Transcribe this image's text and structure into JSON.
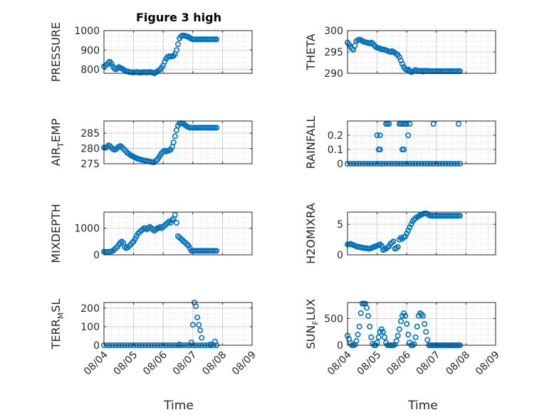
{
  "figure_title": "Figure 3 high",
  "x_axis_label": "Time",
  "marker_color": "#0072BD",
  "chart_data": [
    {
      "type": "scatter",
      "ylabel": "PRESSURE",
      "ylim": [
        780,
        1000
      ],
      "yticks": [
        "800",
        "900",
        "1000"
      ],
      "xticks": [
        "08/04",
        "08/05",
        "08/06",
        "08/07",
        "08/08",
        "08/09"
      ],
      "xlim": [
        0,
        5
      ],
      "show_xticklabels": false,
      "x": [
        0,
        0.05,
        0.1,
        0.15,
        0.2,
        0.25,
        0.3,
        0.35,
        0.4,
        0.45,
        0.5,
        0.55,
        0.6,
        0.65,
        0.7,
        0.75,
        0.8,
        0.85,
        0.9,
        0.95,
        1.0,
        1.05,
        1.1,
        1.15,
        1.2,
        1.25,
        1.3,
        1.35,
        1.4,
        1.45,
        1.5,
        1.55,
        1.6,
        1.65,
        1.7,
        1.75,
        1.8,
        1.85,
        1.9,
        1.95,
        2.0,
        2.05,
        2.1,
        2.15,
        2.2,
        2.25,
        2.3,
        2.35,
        2.4,
        2.45,
        2.5,
        2.55,
        2.6,
        2.65,
        2.7,
        2.75,
        2.8,
        2.85,
        2.9,
        2.95,
        3.0,
        3.05,
        3.1,
        3.15,
        3.2,
        3.25,
        3.3,
        3.35,
        3.4,
        3.45,
        3.5,
        3.55,
        3.6,
        3.65,
        3.7,
        3.75,
        3.8
      ],
      "y": [
        815,
        820,
        825,
        835,
        840,
        830,
        815,
        805,
        800,
        805,
        812,
        808,
        805,
        800,
        795,
        790,
        790,
        787,
        786,
        785,
        784,
        785,
        787,
        785,
        784,
        783,
        785,
        786,
        785,
        784,
        785,
        787,
        785,
        783,
        780,
        785,
        790,
        795,
        800,
        810,
        820,
        840,
        855,
        865,
        868,
        866,
        868,
        870,
        880,
        900,
        930,
        960,
        970,
        975,
        975,
        972,
        970,
        968,
        962,
        958,
        955,
        955,
        955,
        955,
        955,
        955,
        955,
        955,
        955,
        955,
        955,
        955,
        955,
        955,
        955,
        955,
        955
      ]
    },
    {
      "type": "scatter",
      "ylabel": "THETA",
      "ylim": [
        290,
        300
      ],
      "yticks": [
        "290",
        "295",
        "300"
      ],
      "xticks": [
        "08/04",
        "08/05",
        "08/06",
        "08/07",
        "08/08",
        "08/09"
      ],
      "xlim": [
        0,
        5
      ],
      "show_xticklabels": false,
      "x": [
        0,
        0.05,
        0.1,
        0.15,
        0.2,
        0.25,
        0.3,
        0.35,
        0.4,
        0.45,
        0.5,
        0.55,
        0.6,
        0.65,
        0.7,
        0.75,
        0.8,
        0.85,
        0.9,
        0.95,
        1.0,
        1.05,
        1.1,
        1.15,
        1.2,
        1.25,
        1.3,
        1.35,
        1.4,
        1.45,
        1.5,
        1.55,
        1.6,
        1.65,
        1.7,
        1.75,
        1.8,
        1.85,
        1.9,
        1.95,
        2.0,
        2.05,
        2.1,
        2.15,
        2.2,
        2.25,
        2.3,
        2.35,
        2.4,
        2.45,
        2.5,
        2.55,
        2.6,
        2.65,
        2.7,
        2.75,
        2.8,
        2.85,
        2.9,
        2.95,
        3.0,
        3.05,
        3.1,
        3.15,
        3.2,
        3.25,
        3.3,
        3.35,
        3.4,
        3.45,
        3.5,
        3.55,
        3.6,
        3.65,
        3.7,
        3.75,
        3.8
      ],
      "y": [
        297.2,
        296.8,
        296.2,
        295.8,
        295.5,
        296.5,
        297.5,
        297.8,
        297.9,
        297.8,
        297.6,
        297.4,
        297.3,
        297.2,
        297.1,
        297.0,
        297.2,
        297.0,
        296.6,
        296.2,
        296.0,
        295.9,
        295.8,
        295.6,
        295.6,
        295.5,
        295.4,
        295.3,
        295.1,
        295.0,
        295.2,
        295.0,
        294.8,
        294.5,
        294.3,
        293.8,
        293.0,
        292.2,
        291.5,
        291.0,
        290.8,
        290.9,
        290.6,
        290.3,
        290.4,
        290.6,
        290.8,
        290.5,
        290.6,
        290.5,
        290.6,
        290.4,
        290.6,
        290.5,
        290.6,
        290.5,
        290.5,
        290.5,
        290.5,
        290.5,
        290.5,
        290.5,
        290.5,
        290.5,
        290.5,
        290.5,
        290.5,
        290.5,
        290.5,
        290.5,
        290.5,
        290.5,
        290.5,
        290.5,
        290.5,
        290.5,
        290.5
      ]
    },
    {
      "type": "scatter",
      "ylabel_parts": [
        "AIR",
        "T",
        "EMP"
      ],
      "ylim": [
        275,
        289
      ],
      "yticks": [
        "275",
        "280",
        "285"
      ],
      "xticks": [
        "08/04",
        "08/05",
        "08/06",
        "08/07",
        "08/08",
        "08/09"
      ],
      "xlim": [
        0,
        5
      ],
      "show_xticklabels": false,
      "x": [
        0,
        0.05,
        0.1,
        0.15,
        0.2,
        0.25,
        0.3,
        0.35,
        0.4,
        0.45,
        0.5,
        0.55,
        0.6,
        0.65,
        0.7,
        0.75,
        0.8,
        0.85,
        0.9,
        0.95,
        1.0,
        1.05,
        1.1,
        1.15,
        1.2,
        1.25,
        1.3,
        1.35,
        1.4,
        1.45,
        1.5,
        1.55,
        1.6,
        1.65,
        1.7,
        1.75,
        1.8,
        1.85,
        1.9,
        1.95,
        2.0,
        2.05,
        2.1,
        2.15,
        2.2,
        2.25,
        2.3,
        2.35,
        2.4,
        2.45,
        2.5,
        2.55,
        2.6,
        2.65,
        2.7,
        2.75,
        2.8,
        2.85,
        2.9,
        2.95,
        3.0,
        3.05,
        3.1,
        3.15,
        3.2,
        3.25,
        3.3,
        3.35,
        3.4,
        3.45,
        3.5,
        3.55,
        3.6,
        3.65,
        3.7,
        3.75,
        3.8
      ],
      "y": [
        280.3,
        280.2,
        280.5,
        281.0,
        280.8,
        280.3,
        279.8,
        279.6,
        279.7,
        280.2,
        280.6,
        280.8,
        280.5,
        280.0,
        279.5,
        279.0,
        278.5,
        278.2,
        277.8,
        277.5,
        277.3,
        277.0,
        276.8,
        276.6,
        276.5,
        276.3,
        276.2,
        276.1,
        276.0,
        275.9,
        275.8,
        275.7,
        275.6,
        275.5,
        275.5,
        276.0,
        276.3,
        277.0,
        277.8,
        278.5,
        279.0,
        279.3,
        279.0,
        279.2,
        279.4,
        279.6,
        280.5,
        282.0,
        284.0,
        286.0,
        287.5,
        288.2,
        288.3,
        288.2,
        288.0,
        287.6,
        287.2,
        287.0,
        286.8,
        286.8,
        286.8,
        286.8,
        286.8,
        286.8,
        286.8,
        286.8,
        286.8,
        286.8,
        286.8,
        286.8,
        286.8,
        286.8,
        286.8,
        286.8,
        286.8,
        286.8,
        286.8
      ]
    },
    {
      "type": "scatter",
      "ylabel": "RAINFALL",
      "ylim": [
        0,
        0.3
      ],
      "yticks": [
        "0",
        "0.1",
        "0.2"
      ],
      "xticks": [
        "08/04",
        "08/05",
        "08/06",
        "08/07",
        "08/08",
        "08/09"
      ],
      "xlim": [
        0,
        5
      ],
      "show_xticklabels": false,
      "x": [
        0,
        0.1,
        0.2,
        0.3,
        0.4,
        0.5,
        0.6,
        0.7,
        0.8,
        0.9,
        1.0,
        1.1,
        1.2,
        1.3,
        1.4,
        1.5,
        1.6,
        1.7,
        1.8,
        1.9,
        2.0,
        2.1,
        2.2,
        2.3,
        2.4,
        2.5,
        2.6,
        2.7,
        2.8,
        2.9,
        3.0,
        3.1,
        3.2,
        3.3,
        3.4,
        3.5,
        3.6,
        3.7,
        3.8,
        1.0,
        1.1,
        1.05,
        1.1,
        1.3,
        1.35,
        1.4,
        1.75,
        1.8,
        1.85,
        1.9,
        1.95,
        2.0,
        1.85,
        1.9,
        2.05,
        2.1,
        2.9,
        3.75
      ],
      "y": [
        0,
        0,
        0,
        0,
        0,
        0,
        0,
        0,
        0,
        0,
        0,
        0,
        0,
        0,
        0,
        0,
        0,
        0,
        0,
        0,
        0,
        0,
        0,
        0,
        0,
        0,
        0,
        0,
        0,
        0,
        0,
        0,
        0,
        0,
        0,
        0,
        0,
        0,
        0,
        0.2,
        0.2,
        0.1,
        0.1,
        0.28,
        0.28,
        0.28,
        0.28,
        0.28,
        0.28,
        0.28,
        0.28,
        0.28,
        0.1,
        0.1,
        0.2,
        0.28,
        0.28,
        0.28
      ]
    },
    {
      "type": "scatter",
      "ylabel": "MIXDEPTH",
      "ylim": [
        0,
        1600
      ],
      "yticks": [
        "0",
        "1000"
      ],
      "xticks": [
        "08/04",
        "08/05",
        "08/06",
        "08/07",
        "08/08",
        "08/09"
      ],
      "xlim": [
        0,
        5
      ],
      "show_xticklabels": false,
      "x": [
        0,
        0.05,
        0.1,
        0.15,
        0.2,
        0.25,
        0.3,
        0.35,
        0.4,
        0.45,
        0.5,
        0.55,
        0.6,
        0.65,
        0.7,
        0.75,
        0.8,
        0.85,
        0.9,
        0.95,
        1.0,
        1.05,
        1.1,
        1.15,
        1.2,
        1.25,
        1.3,
        1.35,
        1.4,
        1.45,
        1.5,
        1.55,
        1.6,
        1.65,
        1.7,
        1.75,
        1.8,
        1.85,
        1.9,
        1.95,
        2.0,
        2.05,
        2.1,
        2.15,
        2.2,
        2.25,
        2.3,
        2.35,
        2.4,
        2.45,
        2.5,
        2.55,
        2.6,
        2.65,
        2.7,
        2.75,
        2.8,
        2.85,
        2.9,
        2.95,
        3.0,
        3.05,
        3.1,
        3.15,
        3.2,
        3.25,
        3.3,
        3.35,
        3.4,
        3.45,
        3.5,
        3.55,
        3.6,
        3.65,
        3.7,
        3.75,
        3.8
      ],
      "y": [
        120,
        110,
        100,
        110,
        120,
        130,
        150,
        200,
        250,
        300,
        380,
        450,
        500,
        450,
        300,
        250,
        280,
        330,
        380,
        450,
        500,
        600,
        700,
        800,
        850,
        900,
        950,
        1000,
        1000,
        950,
        1000,
        1050,
        1000,
        950,
        900,
        950,
        1000,
        1000,
        1050,
        1000,
        1050,
        1100,
        1150,
        1200,
        1250,
        1200,
        1300,
        1350,
        1500,
        1200,
        700,
        650,
        600,
        550,
        500,
        450,
        400,
        350,
        250,
        150,
        150,
        150,
        150,
        150,
        150,
        150,
        150,
        150,
        150,
        150,
        150,
        150,
        150,
        150,
        150,
        150,
        150
      ]
    },
    {
      "type": "scatter",
      "ylabel": "H2OMIXRA",
      "ylim": [
        0,
        7
      ],
      "yticks": [
        "0",
        "5"
      ],
      "xticks": [
        "08/04",
        "08/05",
        "08/06",
        "08/07",
        "08/08",
        "08/09"
      ],
      "xlim": [
        0,
        5
      ],
      "show_xticklabels": false,
      "x": [
        0,
        0.05,
        0.1,
        0.15,
        0.2,
        0.25,
        0.3,
        0.35,
        0.4,
        0.45,
        0.5,
        0.55,
        0.6,
        0.65,
        0.7,
        0.75,
        0.8,
        0.85,
        0.9,
        0.95,
        1.0,
        1.05,
        1.1,
        1.15,
        1.2,
        1.25,
        1.3,
        1.35,
        1.4,
        1.45,
        1.5,
        1.55,
        1.6,
        1.65,
        1.7,
        1.75,
        1.8,
        1.85,
        1.9,
        1.95,
        2.0,
        2.05,
        2.1,
        2.15,
        2.2,
        2.25,
        2.3,
        2.35,
        2.4,
        2.45,
        2.5,
        2.55,
        2.6,
        2.65,
        2.7,
        2.75,
        2.8,
        2.85,
        2.9,
        2.95,
        3.0,
        3.05,
        3.1,
        3.15,
        3.2,
        3.25,
        3.3,
        3.35,
        3.4,
        3.45,
        3.5,
        3.55,
        3.6,
        3.65,
        3.7,
        3.75,
        3.8
      ],
      "y": [
        1.7,
        1.7,
        1.8,
        1.7,
        1.6,
        1.5,
        1.4,
        1.3,
        1.3,
        1.2,
        1.2,
        1.1,
        1.1,
        1.1,
        1.0,
        1.0,
        1.1,
        1.2,
        1.3,
        1.4,
        1.5,
        1.6,
        1.7,
        1.5,
        0.8,
        0.9,
        1.0,
        1.2,
        1.4,
        1.8,
        2.0,
        2.2,
        1.0,
        1.1,
        1.3,
        2.5,
        2.8,
        2.6,
        2.9,
        3.0,
        3.5,
        4.0,
        4.5,
        5.0,
        5.5,
        5.8,
        6.0,
        6.2,
        6.3,
        6.5,
        6.6,
        6.7,
        6.8,
        6.8,
        6.7,
        6.5,
        6.4,
        6.4,
        6.4,
        6.4,
        6.4,
        6.4,
        6.4,
        6.4,
        6.4,
        6.4,
        6.4,
        6.4,
        6.4,
        6.4,
        6.4,
        6.4,
        6.4,
        6.4,
        6.4,
        6.4,
        6.4
      ]
    },
    {
      "type": "scatter",
      "ylabel_parts": [
        "TERR",
        "M",
        "SL"
      ],
      "ylim": [
        0,
        230
      ],
      "yticks": [
        "0",
        "100",
        "200"
      ],
      "xticks": [
        "08/04",
        "08/05",
        "08/06",
        "08/07",
        "08/08",
        "08/09"
      ],
      "xlim": [
        0,
        5
      ],
      "show_xticklabels": true,
      "x": [
        0,
        0.1,
        0.2,
        0.3,
        0.4,
        0.5,
        0.6,
        0.7,
        0.8,
        0.9,
        1.0,
        1.1,
        1.2,
        1.3,
        1.4,
        1.5,
        1.6,
        1.7,
        1.8,
        1.9,
        2.0,
        2.1,
        2.2,
        2.3,
        2.4,
        2.5,
        2.6,
        2.7,
        2.8,
        2.9,
        3.0,
        3.1,
        3.2,
        3.3,
        3.4,
        3.5,
        3.6,
        3.7,
        3.8,
        2.55,
        2.95,
        3.0,
        3.05,
        3.1,
        3.15,
        3.2,
        3.25,
        3.3,
        3.6,
        3.75
      ],
      "y": [
        0,
        0,
        0,
        0,
        0,
        0,
        0,
        0,
        0,
        0,
        0,
        0,
        0,
        0,
        0,
        0,
        0,
        0,
        0,
        0,
        0,
        0,
        0,
        0,
        0,
        0,
        0,
        0,
        0,
        0,
        0,
        0,
        0,
        0,
        0,
        0,
        0,
        0,
        0,
        5,
        15,
        110,
        230,
        210,
        150,
        110,
        80,
        40,
        5,
        20
      ]
    },
    {
      "type": "scatter",
      "ylabel_parts": [
        "SUN",
        "F",
        "LUX"
      ],
      "ylim": [
        0,
        800
      ],
      "yticks": [
        "0",
        "500"
      ],
      "xticks": [
        "08/04",
        "08/05",
        "08/06",
        "08/07",
        "08/08",
        "08/09"
      ],
      "xlim": [
        0,
        5
      ],
      "show_xticklabels": true,
      "x": [
        0,
        0.05,
        0.1,
        0.15,
        0.2,
        0.25,
        0.3,
        0.35,
        0.4,
        0.45,
        0.5,
        0.55,
        0.6,
        0.65,
        0.7,
        0.75,
        0.8,
        0.85,
        0.9,
        0.95,
        1.0,
        1.05,
        1.1,
        1.15,
        1.2,
        1.25,
        1.3,
        1.35,
        1.4,
        1.45,
        1.5,
        1.55,
        1.6,
        1.65,
        1.7,
        1.75,
        1.8,
        1.85,
        1.9,
        1.95,
        2.0,
        2.05,
        2.1,
        2.15,
        2.2,
        2.25,
        2.3,
        2.35,
        2.4,
        2.45,
        2.5,
        2.55,
        2.6,
        2.65,
        2.7,
        2.75,
        2.8,
        2.85,
        2.9,
        2.95,
        3.0,
        3.05,
        3.1,
        3.15,
        3.2,
        3.25,
        3.3,
        3.35,
        3.4,
        3.45,
        3.5,
        3.55,
        3.6,
        3.65,
        3.7,
        3.75,
        3.8
      ],
      "y": [
        180,
        120,
        40,
        0,
        0,
        10,
        80,
        200,
        350,
        600,
        780,
        780,
        780,
        700,
        550,
        350,
        150,
        30,
        0,
        0,
        50,
        150,
        250,
        300,
        250,
        150,
        50,
        0,
        0,
        0,
        0,
        0,
        10,
        80,
        180,
        300,
        450,
        550,
        600,
        550,
        400,
        200,
        50,
        0,
        0,
        20,
        150,
        350,
        550,
        600,
        580,
        550,
        400,
        250,
        100,
        0,
        0,
        0,
        0,
        0,
        0,
        0,
        0,
        0,
        0,
        0,
        0,
        0,
        0,
        0,
        0,
        0,
        0,
        0,
        0,
        0,
        0
      ]
    }
  ]
}
